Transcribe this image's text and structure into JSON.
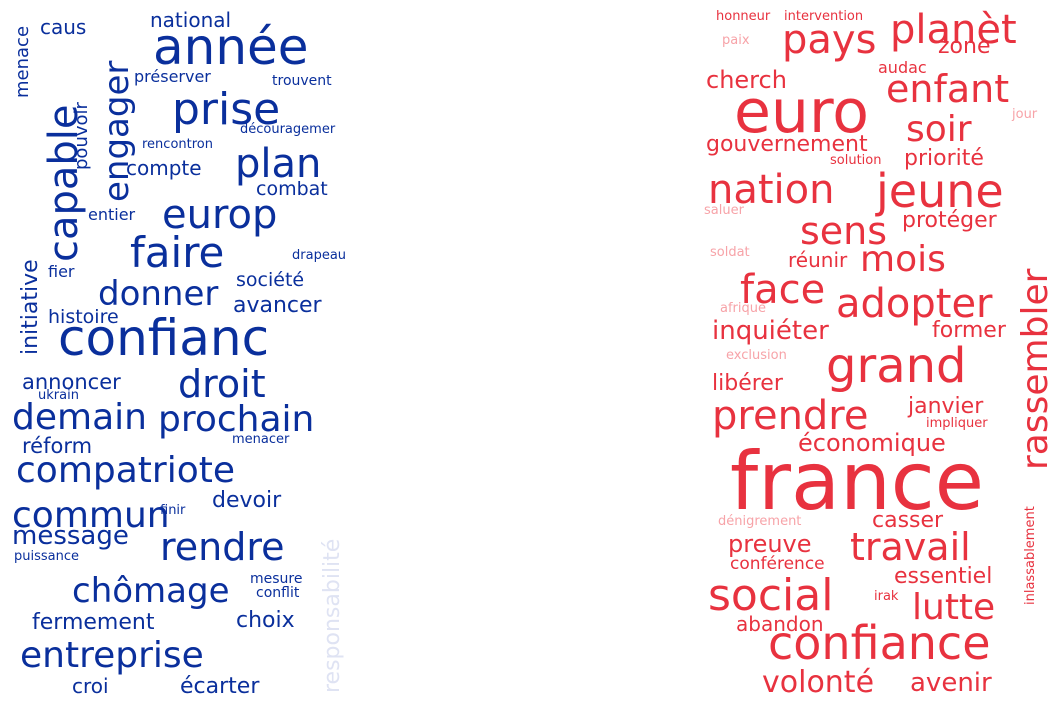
{
  "colors": {
    "blue_strong": "#0a2f9c",
    "blue_faint": "#dfe3f3",
    "red_strong": "#e8323f",
    "red_faint": "#f7a3a8"
  },
  "left_cloud": {
    "words": [
      "année",
      "engager",
      "capable",
      "prise",
      "plan",
      "europ",
      "faire",
      "confianc",
      "droit",
      "donner",
      "prochain",
      "demain",
      "compatriote",
      "commun",
      "rendre",
      "message",
      "chômage",
      "entreprise",
      "choix",
      "devoir",
      "écarter",
      "croi",
      "fermement",
      "national",
      "caus",
      "menace",
      "préserver",
      "trouvent",
      "pouvoir",
      "rencontron",
      "découragemer",
      "compte",
      "combat",
      "entier",
      "initiative",
      "drapeau",
      "fier",
      "société",
      "avancer",
      "histoire",
      "annoncer",
      "ukrain",
      "réform",
      "menacer",
      "finir",
      "puissance",
      "mesure",
      "conflit",
      "responsabilité"
    ]
  },
  "right_cloud": {
    "words": [
      "honneur",
      "intervention",
      "paix",
      "pays",
      "planèt",
      "zone",
      "cherch",
      "audac",
      "euro",
      "enfant",
      "jour",
      "gouvernement",
      "soir",
      "solution",
      "priorité",
      "nation",
      "jeune",
      "saluer",
      "sens",
      "protéger",
      "soldat",
      "réunir",
      "mois",
      "rassembler",
      "face",
      "adopter",
      "afrique",
      "inquiéter",
      "former",
      "exclusion",
      "grand",
      "libérer",
      "prendre",
      "janvier",
      "impliquer",
      "économique",
      "france",
      "dénigrement",
      "casser",
      "preuve",
      "travail",
      "inlassablement",
      "conférence",
      "essentiel",
      "social",
      "irak",
      "lutte",
      "abandon",
      "confiance",
      "volonté",
      "avenir"
    ]
  }
}
